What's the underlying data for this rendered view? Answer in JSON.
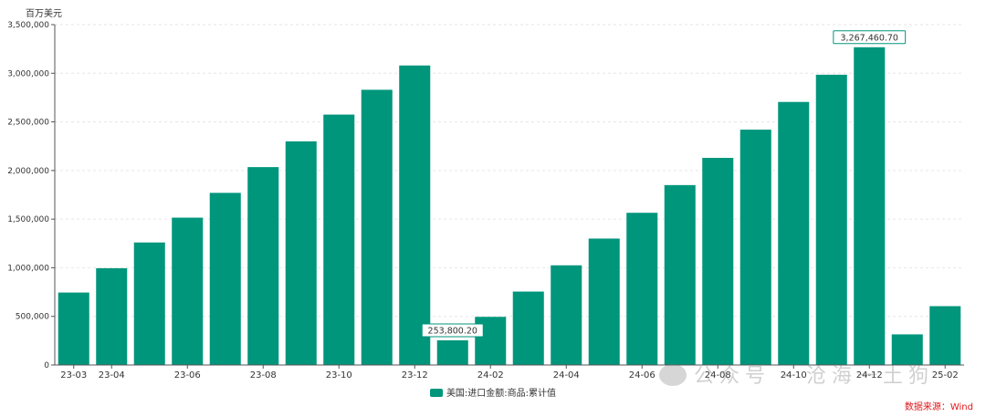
{
  "chart_data": {
    "type": "bar",
    "unit_label": "百万美元",
    "categories": [
      "23-03",
      "23-04",
      "23-05",
      "23-06",
      "23-07",
      "23-08",
      "23-09",
      "23-10",
      "23-11",
      "23-12",
      "24-01",
      "24-02",
      "24-03",
      "24-04",
      "24-05",
      "24-06",
      "24-07",
      "24-08",
      "24-09",
      "24-10",
      "24-11",
      "24-12",
      "25-01",
      "25-02"
    ],
    "x_tick_labels": [
      "23-03",
      "23-04",
      "",
      "23-06",
      "",
      "23-08",
      "",
      "23-10",
      "",
      "23-12",
      "",
      "24-02",
      "",
      "24-04",
      "",
      "24-06",
      "",
      "24-08",
      "",
      "24-10",
      "",
      "24-12",
      "",
      "25-02"
    ],
    "series": [
      {
        "name": "美国:进口金额:商品:累计值",
        "color": "#00967c",
        "values": [
          745000,
          995000,
          1260000,
          1515000,
          1770000,
          2035000,
          2300000,
          2575000,
          2830000,
          3080000,
          253800.2,
          495000,
          755000,
          1025000,
          1300000,
          1565000,
          1850000,
          2130000,
          2420000,
          2705000,
          2985000,
          3267460.7,
          315000,
          605000
        ]
      }
    ],
    "annotations": [
      {
        "category": "24-01",
        "label": "253,800.20"
      },
      {
        "category": "24-12",
        "label": "3,267,460.70"
      }
    ],
    "ylim": [
      0,
      3500000
    ],
    "y_ticks": [
      0,
      500000,
      1000000,
      1500000,
      2000000,
      2500000,
      3000000,
      3500000
    ],
    "y_tick_labels": [
      "0",
      "500,000",
      "1,000,000",
      "1,500,000",
      "2,000,000",
      "2,500,000",
      "3,000,000",
      "3,500,000"
    ],
    "grid": true,
    "legend_position": "bottom-center"
  },
  "source": "数据来源：Wind",
  "watermark": "公众号 · 沧海一土狗"
}
